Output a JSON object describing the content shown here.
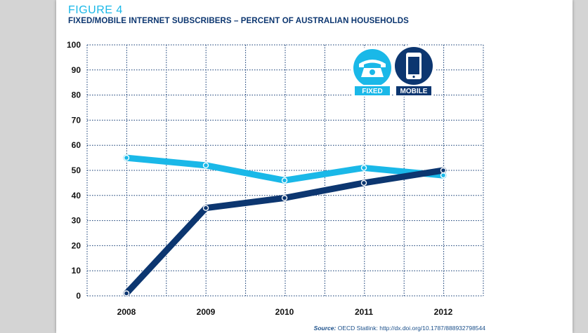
{
  "figure": {
    "label": "FIGURE 4",
    "title": "FIXED/MOBILE INTERNET SUBSCRIBERS – PERCENT OF AUSTRALIAN HOUSEHOLDS"
  },
  "legend": {
    "fixed": {
      "label": "FIXED",
      "icon": "telephone-icon",
      "color": "#1ab8e8"
    },
    "mobile": {
      "label": "MOBILE",
      "icon": "mobile-phone-icon",
      "color": "#0c3670"
    }
  },
  "source": {
    "label": "Source:",
    "text": "OECD Statlink: http://dx.doi.org/10.1787/888932798544"
  },
  "chart_data": {
    "type": "line",
    "title": "FIXED/MOBILE INTERNET SUBSCRIBERS – PERCENT OF AUSTRALIAN HOUSEHOLDS",
    "xlabel": "",
    "ylabel": "",
    "categories": [
      "2008",
      "2009",
      "2010",
      "2011",
      "2012"
    ],
    "ylim": [
      0,
      100
    ],
    "yticks": [
      0,
      10,
      20,
      30,
      40,
      50,
      60,
      70,
      80,
      90,
      100
    ],
    "grid": true,
    "series": [
      {
        "name": "FIXED",
        "color": "#1ab8e8",
        "values": [
          55,
          52,
          46,
          51,
          48
        ]
      },
      {
        "name": "MOBILE",
        "color": "#0c3670",
        "values": [
          1,
          35,
          39,
          45,
          50
        ]
      }
    ]
  }
}
